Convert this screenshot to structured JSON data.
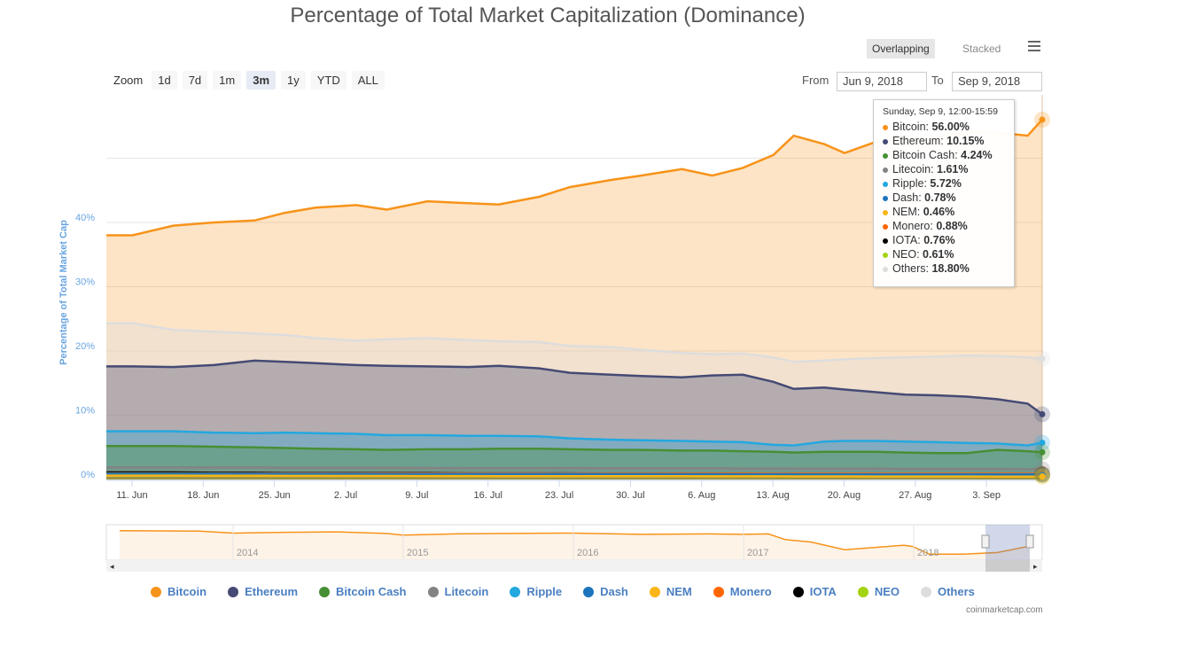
{
  "header": {
    "title": "Percentage of Total Market Capitalization (Dominance)"
  },
  "toolbar": {
    "zoom_label": "Zoom",
    "zoom_buttons": [
      "1d",
      "7d",
      "1m",
      "3m",
      "1y",
      "YTD",
      "ALL"
    ],
    "selected_zoom": "3m",
    "from_label": "From",
    "from_value": "Jun 9, 2018",
    "to_label": "To",
    "to_value": "Sep 9, 2018",
    "mode_overlapping": "Overlapping",
    "mode_stacked": "Stacked",
    "menu_icon": "hamburger-icon"
  },
  "tooltip": {
    "header": "Sunday, Sep 9, 12:00-15:59",
    "rows": [
      {
        "name": "Bitcoin",
        "value": "56.00%",
        "color": "#f7931a"
      },
      {
        "name": "Ethereum",
        "value": "10.15%",
        "color": "#454a75"
      },
      {
        "name": "Bitcoin Cash",
        "value": "4.24%",
        "color": "#478f34"
      },
      {
        "name": "Litecoin",
        "value": "1.61%",
        "color": "#838383"
      },
      {
        "name": "Ripple",
        "value": "5.72%",
        "color": "#23a8e0"
      },
      {
        "name": "Dash",
        "value": "0.78%",
        "color": "#1c75bc"
      },
      {
        "name": "NEM",
        "value": "0.46%",
        "color": "#f9b616"
      },
      {
        "name": "Monero",
        "value": "0.88%",
        "color": "#ff6600"
      },
      {
        "name": "IOTA",
        "value": "0.76%",
        "color": "#000000"
      },
      {
        "name": "NEO",
        "value": "0.61%",
        "color": "#a3d312"
      },
      {
        "name": "Others",
        "value": "18.80%",
        "color": "#dddddd"
      }
    ]
  },
  "footer": {
    "credit": "coinmarketcap.com"
  },
  "chart_data": {
    "type": "area",
    "title": "Percentage of Total Market Capitalization (Dominance)",
    "ylabel": "Percentage of Total Market Cap",
    "ylim": [
      0,
      60
    ],
    "yticks": [
      "0%",
      "10%",
      "20%",
      "30%",
      "40%"
    ],
    "xticks": [
      "11. Jun",
      "18. Jun",
      "25. Jun",
      "2. Jul",
      "9. Jul",
      "16. Jul",
      "23. Jul",
      "30. Jul",
      "6. Aug",
      "13. Aug",
      "20. Aug",
      "27. Aug",
      "3. Sep"
    ],
    "xtick_dates": [
      "2018-06-11",
      "2018-06-18",
      "2018-06-25",
      "2018-07-02",
      "2018-07-09",
      "2018-07-16",
      "2018-07-23",
      "2018-07-30",
      "2018-08-06",
      "2018-08-13",
      "2018-08-20",
      "2018-08-27",
      "2018-09-03"
    ],
    "xlim": [
      "2018-06-09",
      "2018-09-09"
    ],
    "grid": true,
    "legend": "bottom",
    "x": [
      "2018-06-10",
      "2018-06-14",
      "2018-06-18",
      "2018-06-22",
      "2018-06-25",
      "2018-06-28",
      "2018-07-02",
      "2018-07-05",
      "2018-07-09",
      "2018-07-13",
      "2018-07-16",
      "2018-07-20",
      "2018-07-23",
      "2018-07-27",
      "2018-07-30",
      "2018-08-03",
      "2018-08-06",
      "2018-08-09",
      "2018-08-12",
      "2018-08-14",
      "2018-08-17",
      "2018-08-19",
      "2018-08-22",
      "2018-08-25",
      "2018-08-28",
      "2018-08-31",
      "2018-09-03",
      "2018-09-06",
      "2018-09-09"
    ],
    "series": [
      {
        "name": "Bitcoin",
        "color": "#f7931a",
        "values": [
          38,
          39.5,
          40,
          40.3,
          41.5,
          42.3,
          42.7,
          42,
          43.3,
          43,
          42.8,
          44,
          45.5,
          46.6,
          47.3,
          48.3,
          47.3,
          48.5,
          50.5,
          53.5,
          52.2,
          50.8,
          52.5,
          53,
          53.3,
          54,
          54,
          53.5,
          56
        ]
      },
      {
        "name": "Others",
        "color": "#dddddd",
        "values": [
          24.3,
          23.3,
          23,
          22.7,
          22.5,
          22,
          21.6,
          21.8,
          22,
          21.7,
          21.5,
          21.4,
          20.8,
          20.6,
          20.2,
          19.7,
          19.5,
          19.6,
          19,
          18.3,
          18.5,
          18.7,
          18.9,
          19,
          19.1,
          19.3,
          19.2,
          19,
          18.8
        ]
      },
      {
        "name": "Ethereum",
        "color": "#454a75",
        "values": [
          17.6,
          17.5,
          17.8,
          18.5,
          18.3,
          18.1,
          17.8,
          17.7,
          17.6,
          17.5,
          17.7,
          17.3,
          16.6,
          16.3,
          16.1,
          15.9,
          16.2,
          16.3,
          15.2,
          14.1,
          14.3,
          14,
          13.6,
          13.2,
          13.1,
          12.9,
          12.5,
          11.8,
          10.15
        ]
      },
      {
        "name": "Ripple",
        "color": "#23a8e0",
        "values": [
          7.5,
          7.5,
          7.3,
          7.2,
          7.3,
          7.2,
          7.1,
          6.9,
          6.9,
          6.8,
          6.8,
          6.7,
          6.4,
          6.2,
          6.1,
          6,
          5.9,
          5.8,
          5.4,
          5.3,
          5.9,
          6,
          6,
          5.9,
          5.8,
          5.7,
          5.6,
          5.3,
          5.72
        ]
      },
      {
        "name": "Bitcoin Cash",
        "color": "#478f34",
        "values": [
          5.2,
          5.2,
          5.1,
          5,
          4.9,
          4.8,
          4.7,
          4.6,
          4.7,
          4.7,
          4.8,
          4.8,
          4.7,
          4.6,
          4.6,
          4.5,
          4.5,
          4.4,
          4.3,
          4.2,
          4.3,
          4.3,
          4.3,
          4.2,
          4.1,
          4.1,
          4.6,
          4.4,
          4.24
        ]
      },
      {
        "name": "Litecoin",
        "color": "#838383",
        "values": [
          1.9,
          1.9,
          1.9,
          1.9,
          1.85,
          1.85,
          1.85,
          1.85,
          1.8,
          1.8,
          1.8,
          1.8,
          1.8,
          1.75,
          1.75,
          1.75,
          1.75,
          1.7,
          1.7,
          1.7,
          1.7,
          1.7,
          1.7,
          1.65,
          1.65,
          1.65,
          1.65,
          1.6,
          1.61
        ]
      },
      {
        "name": "IOTA",
        "color": "#000000",
        "values": [
          1.1,
          1.1,
          1.05,
          1.05,
          1.0,
          1.0,
          1.0,
          1.0,
          1.0,
          0.95,
          0.95,
          0.95,
          0.95,
          0.9,
          0.9,
          0.9,
          0.9,
          0.85,
          0.85,
          0.8,
          0.8,
          0.8,
          0.8,
          0.8,
          0.8,
          0.78,
          0.78,
          0.77,
          0.76
        ]
      },
      {
        "name": "Monero",
        "color": "#ff6600",
        "values": [
          0.95,
          0.95,
          0.95,
          0.95,
          0.95,
          0.95,
          0.95,
          0.95,
          0.95,
          0.95,
          0.95,
          0.95,
          0.93,
          0.93,
          0.93,
          0.92,
          0.92,
          0.92,
          0.9,
          0.9,
          0.9,
          0.9,
          0.9,
          0.9,
          0.9,
          0.89,
          0.89,
          0.88,
          0.88
        ]
      },
      {
        "name": "NEO",
        "color": "#a3d312",
        "values": [
          0.9,
          0.9,
          0.9,
          0.85,
          0.85,
          0.85,
          0.8,
          0.8,
          0.8,
          0.8,
          0.75,
          0.75,
          0.75,
          0.7,
          0.7,
          0.7,
          0.7,
          0.7,
          0.65,
          0.65,
          0.65,
          0.65,
          0.65,
          0.62,
          0.62,
          0.62,
          0.62,
          0.61,
          0.61
        ]
      },
      {
        "name": "Dash",
        "color": "#1c75bc",
        "values": [
          0.9,
          0.9,
          0.9,
          0.9,
          0.88,
          0.88,
          0.88,
          0.87,
          0.87,
          0.86,
          0.86,
          0.85,
          0.85,
          0.84,
          0.84,
          0.83,
          0.83,
          0.82,
          0.82,
          0.8,
          0.8,
          0.8,
          0.8,
          0.8,
          0.79,
          0.79,
          0.79,
          0.78,
          0.78
        ]
      },
      {
        "name": "NEM",
        "color": "#f9b616",
        "values": [
          0.6,
          0.6,
          0.58,
          0.58,
          0.56,
          0.56,
          0.55,
          0.55,
          0.54,
          0.54,
          0.53,
          0.53,
          0.52,
          0.52,
          0.51,
          0.51,
          0.5,
          0.5,
          0.49,
          0.48,
          0.48,
          0.48,
          0.47,
          0.47,
          0.47,
          0.47,
          0.46,
          0.46,
          0.46
        ]
      }
    ],
    "navigator": {
      "years": [
        "2014",
        "2015",
        "2016",
        "2017",
        "2018"
      ],
      "x": [
        2013.33,
        2013.8,
        2014.0,
        2014.3,
        2014.6,
        2014.9,
        2015.0,
        2015.3,
        2015.6,
        2016.0,
        2016.4,
        2016.8,
        2017.0,
        2017.15,
        2017.25,
        2017.4,
        2017.6,
        2017.85,
        2017.95,
        2018.0,
        2018.1,
        2018.3,
        2018.5,
        2018.69
      ],
      "bitcoin": [
        94,
        93,
        88,
        90,
        91,
        87,
        83,
        86,
        87,
        88,
        85,
        86,
        85,
        86,
        72,
        66,
        47,
        55,
        58,
        55,
        36,
        36,
        40,
        56
      ]
    }
  }
}
